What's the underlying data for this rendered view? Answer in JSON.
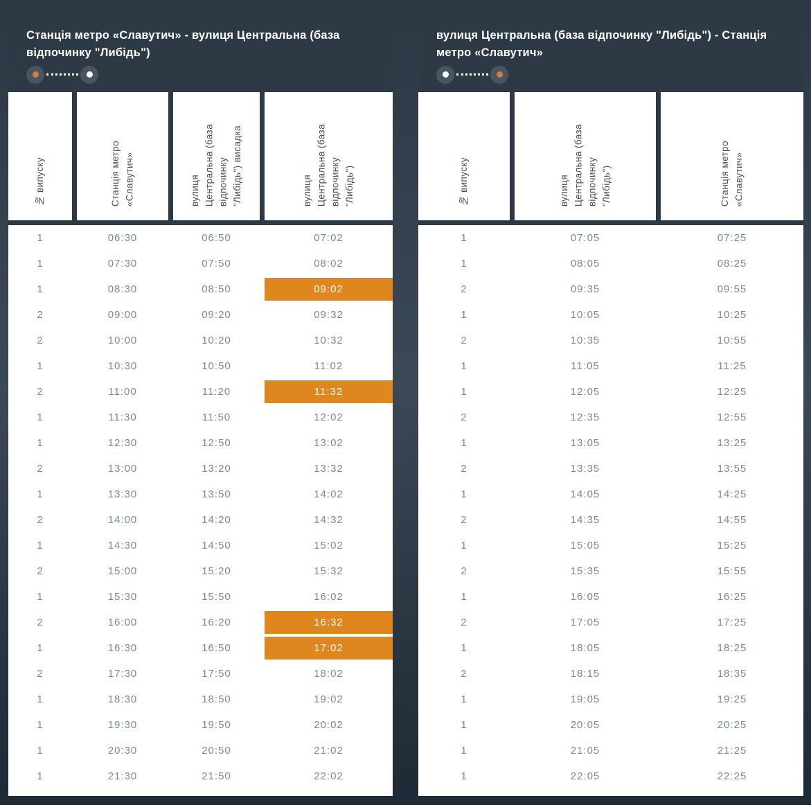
{
  "colors": {
    "accent_orange": "#e0861e",
    "panel_bg": "#2d3a46",
    "page_bg_top": "#2c3844",
    "page_bg_mid": "#3b4855",
    "page_bg_bottom": "#1d2934",
    "header_text": "#47525d",
    "body_text": "#7d8893",
    "title_text": "#ffffff",
    "dot_ring": "#4a545e",
    "dot_orange": "#c97f4a",
    "dot_white": "#ffffff"
  },
  "tables": [
    {
      "title": "Станція метро «Славутич» - вулиця Центральна (база\nвідпочинку \"Либідь\")",
      "indicator": {
        "start_dot": "orange",
        "end_dot": "white"
      },
      "columns": [
        "№ випуску",
        "Станція метро\n«Славутич»",
        "вулиця\nЦентральна (база\nвідпочинку\n\"Либідь\") висадка",
        "вулиця\nЦентральна (база\nвідпочинку\n\"Либідь\")"
      ],
      "rows": [
        [
          "1",
          "06:30",
          "06:50",
          "07:02"
        ],
        [
          "1",
          "07:30",
          "07:50",
          "08:02"
        ],
        [
          "1",
          "08:30",
          "08:50",
          "09:02"
        ],
        [
          "2",
          "09:00",
          "09:20",
          "09:32"
        ],
        [
          "2",
          "10:00",
          "10:20",
          "10:32"
        ],
        [
          "1",
          "10:30",
          "10:50",
          "11:02"
        ],
        [
          "2",
          "11:00",
          "11:20",
          "11:32"
        ],
        [
          "1",
          "11:30",
          "11:50",
          "12:02"
        ],
        [
          "1",
          "12:30",
          "12:50",
          "13:02"
        ],
        [
          "2",
          "13:00",
          "13:20",
          "13:32"
        ],
        [
          "1",
          "13:30",
          "13:50",
          "14:02"
        ],
        [
          "2",
          "14:00",
          "14:20",
          "14:32"
        ],
        [
          "1",
          "14:30",
          "14:50",
          "15:02"
        ],
        [
          "2",
          "15:00",
          "15:20",
          "15:32"
        ],
        [
          "1",
          "15:30",
          "15:50",
          "16:02"
        ],
        [
          "2",
          "16:00",
          "16:20",
          "16:32"
        ],
        [
          "1",
          "16:30",
          "16:50",
          "17:02"
        ],
        [
          "2",
          "17:30",
          "17:50",
          "18:02"
        ],
        [
          "1",
          "18:30",
          "18:50",
          "19:02"
        ],
        [
          "1",
          "19:30",
          "19:50",
          "20:02"
        ],
        [
          "1",
          "20:30",
          "20:50",
          "21:02"
        ],
        [
          "1",
          "21:30",
          "21:50",
          "22:02"
        ]
      ],
      "highlighted_cells": [
        [
          2,
          3
        ],
        [
          6,
          3
        ],
        [
          15,
          3
        ],
        [
          16,
          3
        ]
      ]
    },
    {
      "title": "вулиця Центральна (база відпочинку \"Либідь\") - Станція\nметро «Славутич»",
      "indicator": {
        "start_dot": "white",
        "end_dot": "orange"
      },
      "columns": [
        "№ випуску",
        "вулиця\nЦентральна (база\nвідпочинку\n\"Либідь\")",
        "Станція метро\n«Славутич»"
      ],
      "rows": [
        [
          "1",
          "07:05",
          "07:25"
        ],
        [
          "1",
          "08:05",
          "08:25"
        ],
        [
          "2",
          "09:35",
          "09:55"
        ],
        [
          "1",
          "10:05",
          "10:25"
        ],
        [
          "2",
          "10:35",
          "10:55"
        ],
        [
          "1",
          "11:05",
          "11:25"
        ],
        [
          "1",
          "12:05",
          "12:25"
        ],
        [
          "2",
          "12:35",
          "12:55"
        ],
        [
          "1",
          "13:05",
          "13:25"
        ],
        [
          "2",
          "13:35",
          "13:55"
        ],
        [
          "1",
          "14:05",
          "14:25"
        ],
        [
          "2",
          "14:35",
          "14:55"
        ],
        [
          "1",
          "15:05",
          "15:25"
        ],
        [
          "2",
          "15:35",
          "15:55"
        ],
        [
          "1",
          "16:05",
          "16:25"
        ],
        [
          "2",
          "17:05",
          "17:25"
        ],
        [
          "1",
          "18:05",
          "18:25"
        ],
        [
          "2",
          "18:15",
          "18:35"
        ],
        [
          "1",
          "19:05",
          "19:25"
        ],
        [
          "1",
          "20:05",
          "20:25"
        ],
        [
          "1",
          "21:05",
          "21:25"
        ],
        [
          "1",
          "22:05",
          "22:25"
        ]
      ],
      "highlighted_cells": []
    }
  ]
}
